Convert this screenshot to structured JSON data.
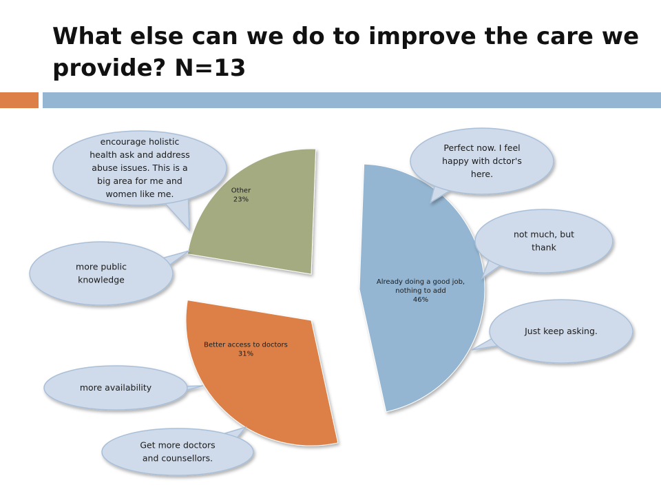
{
  "slide": {
    "title_line1": "What else can we do to improve the care we",
    "title_line2": "provide? N=13"
  },
  "colors": {
    "accent_bar": "#dd8047",
    "title_bar": "#94b6d2",
    "callout_fill": "#cfdbea",
    "callout_stroke": "#a9bfd8"
  },
  "chart_data": {
    "type": "pie",
    "title": "What else can we do to improve the care we provide? N=13",
    "slices": [
      {
        "label": [
          "Already doing a good job,",
          "nothing to add"
        ],
        "pct_label": "46%",
        "value": 46,
        "color": "#94b6d2"
      },
      {
        "label": [
          "Better access to doctors"
        ],
        "pct_label": "31%",
        "value": 31,
        "color": "#dd8047"
      },
      {
        "label": [
          "Other"
        ],
        "pct_label": "23%",
        "value": 23,
        "color": "#a5ab81"
      }
    ],
    "exploded": true,
    "callouts": [
      {
        "lines": [
          "Perfect now. I feel",
          "happy with dctor's",
          "here."
        ],
        "slice": "Already doing a good job, nothing to add"
      },
      {
        "lines": [
          "not much, but",
          "thank"
        ],
        "slice": "Already doing a good job, nothing to add"
      },
      {
        "lines": [
          "Just keep asking."
        ],
        "slice": "Already doing a good job, nothing to add"
      },
      {
        "lines": [
          "more availability"
        ],
        "slice": "Better access to doctors"
      },
      {
        "lines": [
          "Get more doctors",
          "and counsellors."
        ],
        "slice": "Better access to doctors"
      },
      {
        "lines": [
          "encourage holistic",
          "health ask and address",
          "abuse issues. This is a",
          "big area for me and",
          "women like me."
        ],
        "slice": "Other"
      },
      {
        "lines": [
          "more public",
          "knowledge"
        ],
        "slice": "Other"
      }
    ]
  }
}
